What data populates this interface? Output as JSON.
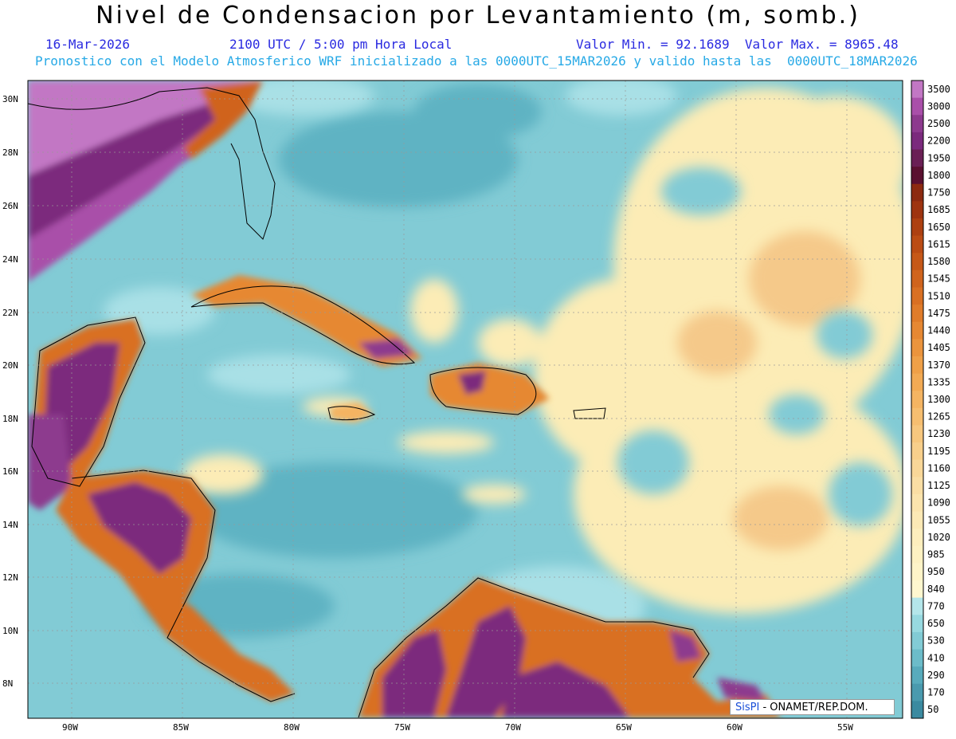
{
  "header": {
    "title": "Nivel de Condensacion por Levantamiento (m, somb.)",
    "date": "16-Mar-2026",
    "time": "2100 UTC / 5:00 pm Hora Local",
    "minmax": "Valor Min. = 92.1689  Valor Max. = 8965.48",
    "forecast": "Pronostico con el Modelo Atmosferico WRF inicializado a las 0000UTC_15MAR2026 y valido hasta las  0000UTC_18MAR2026"
  },
  "axes": {
    "lon_labels": [
      "90W",
      "85W",
      "80W",
      "75W",
      "70W",
      "65W",
      "60W",
      "55W"
    ],
    "lat_labels": [
      "30N",
      "28N",
      "26N",
      "24N",
      "22N",
      "20N",
      "18N",
      "16N",
      "14N",
      "12N",
      "10N",
      "8N"
    ]
  },
  "legend": {
    "levels": [
      {
        "label": "3500",
        "color": "#c277c4"
      },
      {
        "label": "3000",
        "color": "#a94fa9"
      },
      {
        "label": "2500",
        "color": "#8d3a8e"
      },
      {
        "label": "2200",
        "color": "#7b2a7d"
      },
      {
        "label": "1950",
        "color": "#6a1f55"
      },
      {
        "label": "1800",
        "color": "#5a1030"
      },
      {
        "label": "1750",
        "color": "#8c2a10"
      },
      {
        "label": "1685",
        "color": "#9e3410"
      },
      {
        "label": "1650",
        "color": "#ad4011"
      },
      {
        "label": "1615",
        "color": "#bb4c14"
      },
      {
        "label": "1580",
        "color": "#c65818"
      },
      {
        "label": "1545",
        "color": "#d0641d"
      },
      {
        "label": "1510",
        "color": "#d97023"
      },
      {
        "label": "1475",
        "color": "#e07c2a"
      },
      {
        "label": "1440",
        "color": "#e68833"
      },
      {
        "label": "1405",
        "color": "#eb943d"
      },
      {
        "label": "1370",
        "color": "#efa048"
      },
      {
        "label": "1335",
        "color": "#f2aa54"
      },
      {
        "label": "1300",
        "color": "#f4b462"
      },
      {
        "label": "1265",
        "color": "#f6be70"
      },
      {
        "label": "1230",
        "color": "#f7c77e"
      },
      {
        "label": "1195",
        "color": "#f8cf8b"
      },
      {
        "label": "1160",
        "color": "#f9d798"
      },
      {
        "label": "1125",
        "color": "#fadea4"
      },
      {
        "label": "1090",
        "color": "#fbe4ad"
      },
      {
        "label": "1055",
        "color": "#fce9b5"
      },
      {
        "label": "1020",
        "color": "#fdeebd"
      },
      {
        "label": "985",
        "color": "#fdf1c2"
      },
      {
        "label": "950",
        "color": "#fef4c8"
      },
      {
        "label": "840",
        "color": "#fef7cf"
      },
      {
        "label": "770",
        "color": "#b4e6ea"
      },
      {
        "label": "650",
        "color": "#97d9e0"
      },
      {
        "label": "530",
        "color": "#82cbd5"
      },
      {
        "label": "410",
        "color": "#6cbcc9"
      },
      {
        "label": "290",
        "color": "#58abbc"
      },
      {
        "label": "170",
        "color": "#4a9aae"
      },
      {
        "label": "50",
        "color": "#3b8aa0"
      }
    ]
  },
  "credit": {
    "brand": "SisPI",
    "org": " - ONAMET/REP.DOM."
  }
}
